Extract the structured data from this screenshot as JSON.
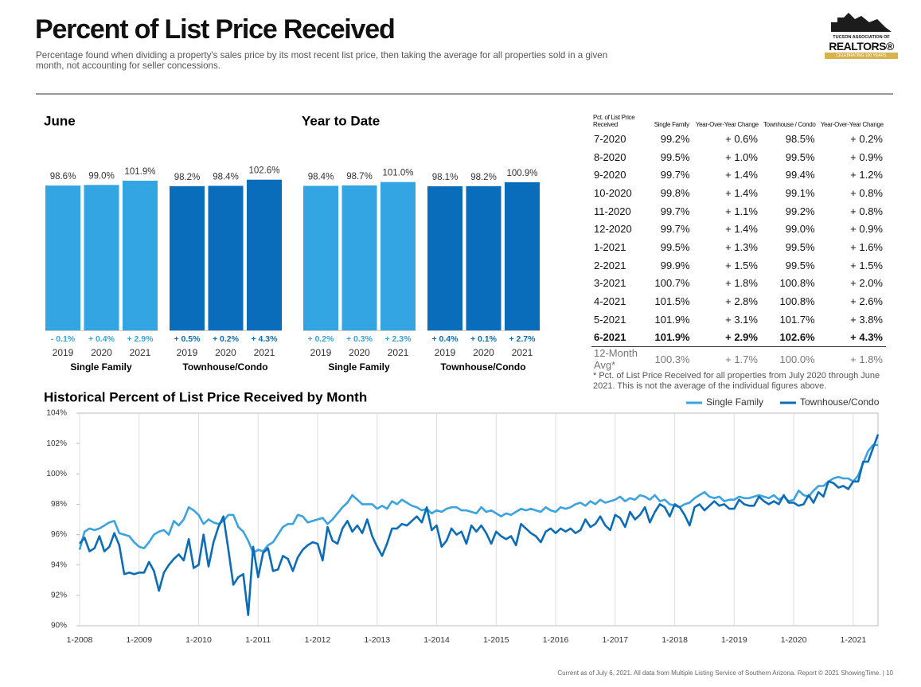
{
  "header": {
    "title": "Percent of List Price Received",
    "subtitle": "Percentage found when dividing a property's sales price by its most recent list price, then taking the average for all properties sold in a given month, not accounting for seller concessions.",
    "logo": [
      "TUCSON ASSOCIATION OF",
      "REALTORS®",
      "CELEBRATING 100 YEARS"
    ]
  },
  "chart_data": [
    {
      "type": "bar",
      "title": "June",
      "ylim": [
        0,
        100
      ],
      "groups": [
        {
          "name": "Single Family",
          "color": "#33a5e3",
          "categories": [
            "2019",
            "2020",
            "2021"
          ],
          "values": [
            98.6,
            99.0,
            101.9
          ],
          "value_labels": [
            "98.6%",
            "99.0%",
            "101.9%"
          ],
          "change_labels": [
            "- 0.1%",
            "+ 0.4%",
            "+ 2.9%"
          ]
        },
        {
          "name": "Townhouse/Condo",
          "color": "#0a6dbb",
          "categories": [
            "2019",
            "2020",
            "2021"
          ],
          "values": [
            98.2,
            98.4,
            102.6
          ],
          "value_labels": [
            "98.2%",
            "98.4%",
            "102.6%"
          ],
          "change_labels": [
            "+ 0.5%",
            "+ 0.2%",
            "+ 4.3%"
          ]
        }
      ]
    },
    {
      "type": "bar",
      "title": "Year to Date",
      "ylim": [
        0,
        100
      ],
      "groups": [
        {
          "name": "Single Family",
          "color": "#33a5e3",
          "categories": [
            "2019",
            "2020",
            "2021"
          ],
          "values": [
            98.4,
            98.7,
            101.0
          ],
          "value_labels": [
            "98.4%",
            "98.7%",
            "101.0%"
          ],
          "change_labels": [
            "+ 0.2%",
            "+ 0.3%",
            "+ 2.3%"
          ]
        },
        {
          "name": "Townhouse/Condo",
          "color": "#0a6dbb",
          "categories": [
            "2019",
            "2020",
            "2021"
          ],
          "values": [
            98.1,
            98.2,
            100.9
          ],
          "value_labels": [
            "98.1%",
            "98.2%",
            "100.9%"
          ],
          "change_labels": [
            "+ 0.4%",
            "+ 0.1%",
            "+ 2.7%"
          ]
        }
      ]
    },
    {
      "type": "line",
      "title": "Historical Percent of List Price Received by Month",
      "legend": "upper right",
      "grid": true,
      "ylim": [
        90,
        104
      ],
      "yticks": [
        {
          "value": 90,
          "label": "90%"
        },
        {
          "value": 92,
          "label": "92%"
        },
        {
          "value": 94,
          "label": "94%"
        },
        {
          "value": 96,
          "label": "96%"
        },
        {
          "value": 98,
          "label": "98%"
        },
        {
          "value": 100,
          "label": "100%"
        },
        {
          "value": 102,
          "label": "102%"
        },
        {
          "value": 104,
          "label": "104%"
        }
      ],
      "categories": [
        "1-2008",
        null,
        null,
        null,
        null,
        null,
        null,
        null,
        null,
        null,
        null,
        null,
        "1-2009",
        null,
        null,
        null,
        null,
        null,
        null,
        null,
        null,
        null,
        null,
        null,
        "1-2010",
        null,
        null,
        null,
        null,
        null,
        null,
        null,
        null,
        null,
        null,
        null,
        "1-2011",
        null,
        null,
        null,
        null,
        null,
        null,
        null,
        null,
        null,
        null,
        null,
        "1-2012",
        null,
        null,
        null,
        null,
        null,
        null,
        null,
        null,
        null,
        null,
        null,
        "1-2013",
        null,
        null,
        null,
        null,
        null,
        null,
        null,
        null,
        null,
        null,
        null,
        "1-2014",
        null,
        null,
        null,
        null,
        null,
        null,
        null,
        null,
        null,
        null,
        null,
        "1-2015",
        null,
        null,
        null,
        null,
        null,
        null,
        null,
        null,
        null,
        null,
        null,
        "1-2016",
        null,
        null,
        null,
        null,
        null,
        null,
        null,
        null,
        null,
        null,
        null,
        "1-2017",
        null,
        null,
        null,
        null,
        null,
        null,
        null,
        null,
        null,
        null,
        null,
        "1-2018",
        null,
        null,
        null,
        null,
        null,
        null,
        null,
        null,
        null,
        null,
        null,
        "1-2019",
        null,
        null,
        null,
        null,
        null,
        null,
        null,
        null,
        null,
        null,
        null,
        "1-2020",
        null,
        null,
        null,
        null,
        null,
        null,
        null,
        null,
        null,
        null,
        null,
        "1-2021",
        null,
        null,
        null,
        null,
        null
      ],
      "series": [
        {
          "name": "Single Family",
          "color": "#3aa3e0",
          "values": [
            95.0,
            96.2,
            96.4,
            96.3,
            96.4,
            96.6,
            96.8,
            96.9,
            96.1,
            96.0,
            95.9,
            95.5,
            95.2,
            95.1,
            95.5,
            96.0,
            96.2,
            96.3,
            96.0,
            96.9,
            96.6,
            97.0,
            97.8,
            97.6,
            97.3,
            96.7,
            97.0,
            96.8,
            96.7,
            96.9,
            97.3,
            97.3,
            96.5,
            96.2,
            95.6,
            94.8,
            95.0,
            94.9,
            95.3,
            95.5,
            96.0,
            96.5,
            96.7,
            96.7,
            97.3,
            97.2,
            96.8,
            96.9,
            97.0,
            97.1,
            96.7,
            97.0,
            97.4,
            97.8,
            98.1,
            98.6,
            98.3,
            98.0,
            98.0,
            98.0,
            97.7,
            97.9,
            97.7,
            98.2,
            98.0,
            98.3,
            98.1,
            97.9,
            97.8,
            97.6,
            97.7,
            97.4,
            97.6,
            97.5,
            97.7,
            97.8,
            97.8,
            97.6,
            97.6,
            97.5,
            97.4,
            97.8,
            97.5,
            97.6,
            97.4,
            97.2,
            97.4,
            97.3,
            97.5,
            97.7,
            97.6,
            97.7,
            97.6,
            97.5,
            97.8,
            97.6,
            97.5,
            97.8,
            97.7,
            97.8,
            98.0,
            98.1,
            97.9,
            98.2,
            98.0,
            98.3,
            98.1,
            98.2,
            98.3,
            98.5,
            98.2,
            98.4,
            98.3,
            98.6,
            98.5,
            98.3,
            98.6,
            98.2,
            98.3,
            98.0,
            97.9,
            97.8,
            98.0,
            98.1,
            98.4,
            98.6,
            98.8,
            98.5,
            98.4,
            98.5,
            98.2,
            98.3,
            98.3,
            98.5,
            98.4,
            98.4,
            98.5,
            98.6,
            98.5,
            98.4,
            98.6,
            98.3,
            98.5,
            98.2,
            98.3,
            98.9,
            98.6,
            98.5,
            98.9,
            99.2,
            99.2,
            99.5,
            99.7,
            99.8,
            99.7,
            99.7,
            99.5,
            99.9,
            100.7,
            101.5,
            101.9,
            101.9
          ]
        },
        {
          "name": "Townhouse/Condo",
          "color": "#0b6cb8",
          "values": [
            95.4,
            95.8,
            94.9,
            95.1,
            95.9,
            94.9,
            95.2,
            96.1,
            95.3,
            93.4,
            93.5,
            93.4,
            93.5,
            93.5,
            94.2,
            93.6,
            92.3,
            93.5,
            94.0,
            94.4,
            94.7,
            94.3,
            95.7,
            93.8,
            94.0,
            96.0,
            93.9,
            95.5,
            96.5,
            97.2,
            95.0,
            92.7,
            93.2,
            93.4,
            90.7,
            95.2,
            93.2,
            94.8,
            95.1,
            93.6,
            93.7,
            94.6,
            94.4,
            93.6,
            94.5,
            95.0,
            95.3,
            95.5,
            95.4,
            94.3,
            96.5,
            95.6,
            95.4,
            96.4,
            96.9,
            96.2,
            96.6,
            96.1,
            97.0,
            95.9,
            95.2,
            94.6,
            95.4,
            96.4,
            96.4,
            96.7,
            96.6,
            96.9,
            97.2,
            96.8,
            97.8,
            96.3,
            96.6,
            95.2,
            95.6,
            96.4,
            96.0,
            96.2,
            95.4,
            96.6,
            96.2,
            96.6,
            96.1,
            95.4,
            96.2,
            95.9,
            95.7,
            95.9,
            95.3,
            96.7,
            96.4,
            96.1,
            95.9,
            95.5,
            96.2,
            96.4,
            96.1,
            96.4,
            96.2,
            96.4,
            96.1,
            96.3,
            97.0,
            96.5,
            96.7,
            97.2,
            96.6,
            96.3,
            97.3,
            97.1,
            96.5,
            97.5,
            97.0,
            97.3,
            97.8,
            96.8,
            97.5,
            98.0,
            97.8,
            97.2,
            98.0,
            97.8,
            97.3,
            96.6,
            97.8,
            98.0,
            97.6,
            97.9,
            98.2,
            97.9,
            98.0,
            97.7,
            97.7,
            98.3,
            98.0,
            97.9,
            97.9,
            98.5,
            98.2,
            98.0,
            98.2,
            98.0,
            98.6,
            98.1,
            98.1,
            97.9,
            98.0,
            98.6,
            98.1,
            98.8,
            98.5,
            99.5,
            99.4,
            99.1,
            99.2,
            99.0,
            99.5,
            99.5,
            100.8,
            100.8,
            101.7,
            102.6
          ]
        }
      ]
    }
  ],
  "table": {
    "headers": [
      "Pct. of List Price Received",
      "Single Family",
      "Year-Over-Year Change",
      "Townhouse / Condo",
      "Year-Over-Year Change"
    ],
    "rows": [
      [
        "7-2020",
        "99.2%",
        "+ 0.6%",
        "98.5%",
        "+ 0.2%"
      ],
      [
        "8-2020",
        "99.5%",
        "+ 1.0%",
        "99.5%",
        "+ 0.9%"
      ],
      [
        "9-2020",
        "99.7%",
        "+ 1.4%",
        "99.4%",
        "+ 1.2%"
      ],
      [
        "10-2020",
        "99.8%",
        "+ 1.4%",
        "99.1%",
        "+ 0.8%"
      ],
      [
        "11-2020",
        "99.7%",
        "+ 1.1%",
        "99.2%",
        "+ 0.8%"
      ],
      [
        "12-2020",
        "99.7%",
        "+ 1.4%",
        "99.0%",
        "+ 0.9%"
      ],
      [
        "1-2021",
        "99.5%",
        "+ 1.3%",
        "99.5%",
        "+ 1.6%"
      ],
      [
        "2-2021",
        "99.9%",
        "+ 1.5%",
        "99.5%",
        "+ 1.5%"
      ],
      [
        "3-2021",
        "100.7%",
        "+ 1.8%",
        "100.8%",
        "+ 2.0%"
      ],
      [
        "4-2021",
        "101.5%",
        "+ 2.8%",
        "100.8%",
        "+ 2.6%"
      ],
      [
        "5-2021",
        "101.9%",
        "+ 3.1%",
        "101.7%",
        "+ 3.8%"
      ],
      [
        "6-2021",
        "101.9%",
        "+ 2.9%",
        "102.6%",
        "+ 4.3%"
      ]
    ],
    "summary": [
      "12-Month Avg*",
      "100.3%",
      "+ 1.7%",
      "100.0%",
      "+ 1.8%"
    ],
    "footnote": "* Pct. of List Price Received for all properties from July 2020 through June 2021. This is not the average of the individual figures above."
  },
  "footer": "Current as of July 6, 2021. All data from Multiple Listing Service of Southern Arizona. Report © 2021 ShowingTime. | 10"
}
